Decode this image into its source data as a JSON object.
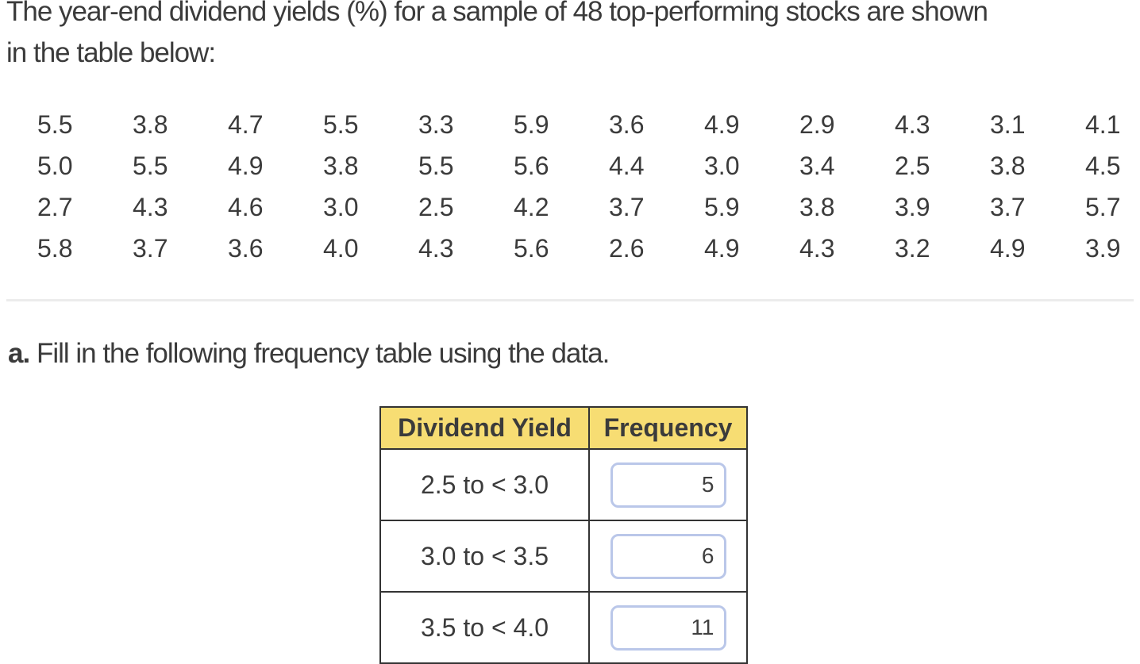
{
  "intro": {
    "line1": "The year-end dividend yields (%) for a sample of 48 top-performing stocks are shown",
    "line2": "in the table below:"
  },
  "data_grid": {
    "rows": [
      [
        "5.5",
        "3.8",
        "4.7",
        "5.5",
        "3.3",
        "5.9",
        "3.6",
        "4.9",
        "2.9",
        "4.3",
        "3.1",
        "4.1"
      ],
      [
        "5.0",
        "5.5",
        "4.9",
        "3.8",
        "5.5",
        "5.6",
        "4.4",
        "3.0",
        "3.4",
        "2.5",
        "3.8",
        "4.5"
      ],
      [
        "2.7",
        "4.3",
        "4.6",
        "3.0",
        "2.5",
        "4.2",
        "3.7",
        "5.9",
        "3.8",
        "3.9",
        "3.7",
        "5.7"
      ],
      [
        "5.8",
        "3.7",
        "3.6",
        "4.0",
        "4.3",
        "5.6",
        "2.6",
        "4.9",
        "4.3",
        "3.2",
        "4.9",
        "3.9"
      ]
    ]
  },
  "question": {
    "label": "a.",
    "text": "Fill in the following frequency table using the data."
  },
  "freq_table": {
    "headers": [
      "Dividend Yield",
      "Frequency"
    ],
    "rows": [
      {
        "label": "2.5 to < 3.0",
        "value": "5"
      },
      {
        "label": "3.0 to < 3.5",
        "value": "6"
      },
      {
        "label": "3.5 to < 4.0",
        "value": "11"
      }
    ]
  },
  "colors": {
    "text": "#3b3b3b",
    "header_bg": "#f7dd73",
    "table_border": "#333333",
    "input_border": "#bac7e9",
    "divider": "#ececec"
  }
}
